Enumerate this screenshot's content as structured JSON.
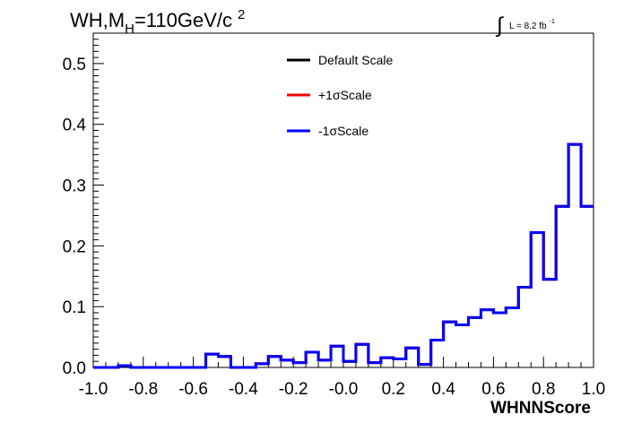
{
  "chart_data": {
    "type": "line",
    "title": {
      "main": "WH,M",
      "sub": "H",
      "rest": "=110GeV/c",
      "sup": "2"
    },
    "lumi": {
      "symbol": "∫",
      "text": "L = 8.2 fb",
      "sup": "-1"
    },
    "xlabel": "WHNNScore",
    "ylabel": "",
    "xlim": [
      -1.0,
      1.0
    ],
    "ylim": [
      0.0,
      0.55
    ],
    "xticks": [
      "-1.0",
      "-0.8",
      "-0.6",
      "-0.4",
      "-0.2",
      "-0.0",
      "0.2",
      "0.4",
      "0.6",
      "0.8",
      "1.0"
    ],
    "yticks": [
      "0.0",
      "0.1",
      "0.2",
      "0.3",
      "0.4",
      "0.5"
    ],
    "legend_position": "top-center",
    "bin_edges": [
      -1.0,
      -0.95,
      -0.9,
      -0.85,
      -0.8,
      -0.75,
      -0.7,
      -0.65,
      -0.6,
      -0.55,
      -0.5,
      -0.45,
      -0.4,
      -0.35,
      -0.3,
      -0.25,
      -0.2,
      -0.15,
      -0.1,
      -0.05,
      0.0,
      0.05,
      0.1,
      0.15,
      0.2,
      0.25,
      0.3,
      0.35,
      0.4,
      0.45,
      0.5,
      0.55,
      0.6,
      0.65,
      0.7,
      0.75,
      0.8,
      0.85,
      0.9,
      0.95,
      1.0
    ],
    "series": [
      {
        "name": "Default Scale",
        "color": "#000000",
        "values": [
          0.0,
          0.0,
          0.003,
          0.0,
          0.0,
          0.0,
          0.0,
          0.0,
          0.0,
          0.022,
          0.018,
          0.0,
          0.0,
          0.006,
          0.018,
          0.012,
          0.008,
          0.025,
          0.012,
          0.035,
          0.01,
          0.038,
          0.008,
          0.016,
          0.014,
          0.032,
          0.005,
          0.045,
          0.075,
          0.07,
          0.082,
          0.095,
          0.09,
          0.098,
          0.132,
          0.222,
          0.145,
          0.265,
          0.367,
          0.265
        ]
      },
      {
        "name": "+1σScale",
        "color": "#ff0000",
        "values": [
          0.0,
          0.0,
          0.003,
          0.0,
          0.0,
          0.0,
          0.0,
          0.0,
          0.0,
          0.022,
          0.018,
          0.0,
          0.0,
          0.006,
          0.018,
          0.012,
          0.008,
          0.025,
          0.012,
          0.035,
          0.01,
          0.038,
          0.008,
          0.016,
          0.014,
          0.032,
          0.005,
          0.045,
          0.075,
          0.07,
          0.082,
          0.095,
          0.09,
          0.098,
          0.132,
          0.222,
          0.145,
          0.265,
          0.367,
          0.265
        ]
      },
      {
        "name": "-1σScale",
        "color": "#0000ff",
        "values": [
          0.0,
          0.0,
          0.003,
          0.0,
          0.0,
          0.0,
          0.0,
          0.0,
          0.0,
          0.022,
          0.018,
          0.0,
          0.0,
          0.006,
          0.018,
          0.012,
          0.008,
          0.025,
          0.012,
          0.035,
          0.01,
          0.038,
          0.008,
          0.016,
          0.014,
          0.032,
          0.005,
          0.045,
          0.075,
          0.07,
          0.082,
          0.095,
          0.09,
          0.098,
          0.132,
          0.222,
          0.145,
          0.265,
          0.367,
          0.265
        ]
      }
    ]
  }
}
